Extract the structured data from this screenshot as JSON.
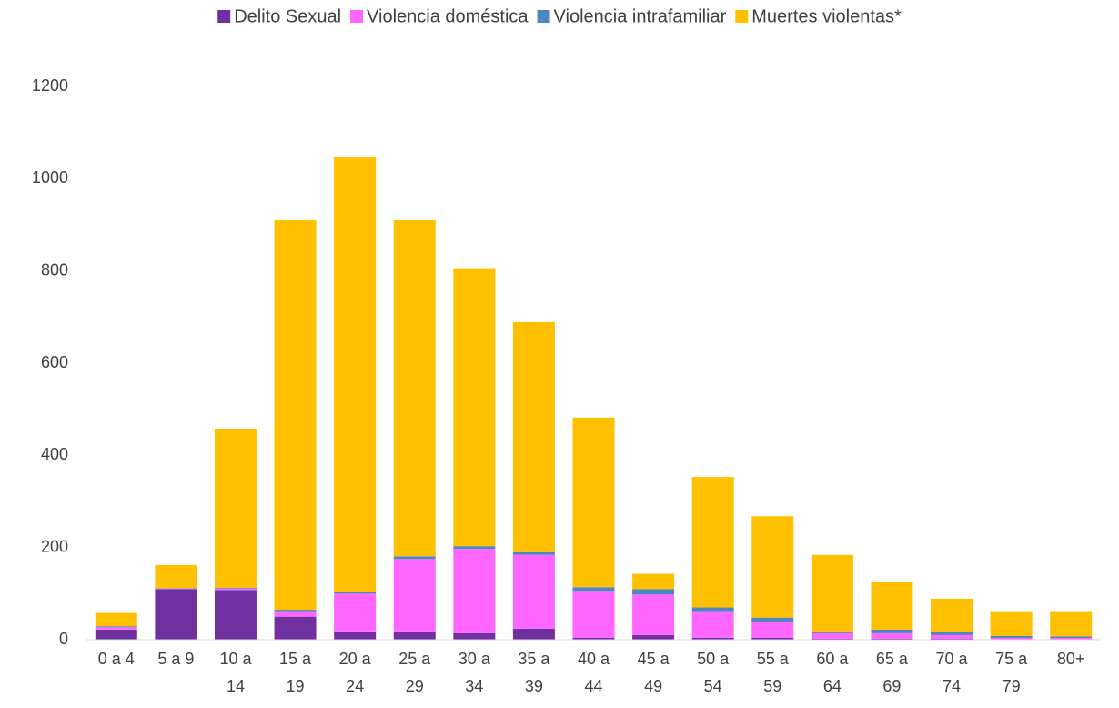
{
  "chart_data": {
    "type": "stacked_bar",
    "categories": [
      "0 a 4",
      "5 a 9",
      "10 a 14",
      "15 a 19",
      "20 a 24",
      "25 a 29",
      "30 a 34",
      "35 a 39",
      "40 a 44",
      "45 a 49",
      "50 a 54",
      "55 a 59",
      "60 a 64",
      "65 a 69",
      "70 a 74",
      "75 a 79",
      "80+"
    ],
    "series": [
      {
        "name": "Delito Sexual",
        "color": "#7030a0",
        "values": [
          22,
          110,
          108,
          50,
          18,
          18,
          14,
          24,
          4,
          10,
          4,
          4,
          2,
          2,
          2,
          1,
          1
        ]
      },
      {
        "name": "Violencia doméstica",
        "color": "#ff66ff",
        "values": [
          5,
          1,
          3,
          12,
          82,
          157,
          183,
          160,
          102,
          88,
          58,
          34,
          12,
          12,
          8,
          3,
          3
        ]
      },
      {
        "name": "Violencia intrafamiliar",
        "color": "#4f86c0",
        "values": [
          2,
          1,
          2,
          3,
          4,
          6,
          6,
          6,
          8,
          12,
          8,
          10,
          4,
          8,
          6,
          4,
          3
        ]
      },
      {
        "name": "Muertes violentas*",
        "color": "#ffc000",
        "values": [
          29,
          50,
          345,
          845,
          942,
          729,
          601,
          499,
          368,
          33,
          283,
          220,
          166,
          104,
          73,
          54,
          55
        ]
      }
    ],
    "ylim": [
      0,
      1200
    ],
    "yticks": [
      0,
      200,
      400,
      600,
      800,
      1000,
      1200
    ],
    "grid": false,
    "legend": "top"
  }
}
